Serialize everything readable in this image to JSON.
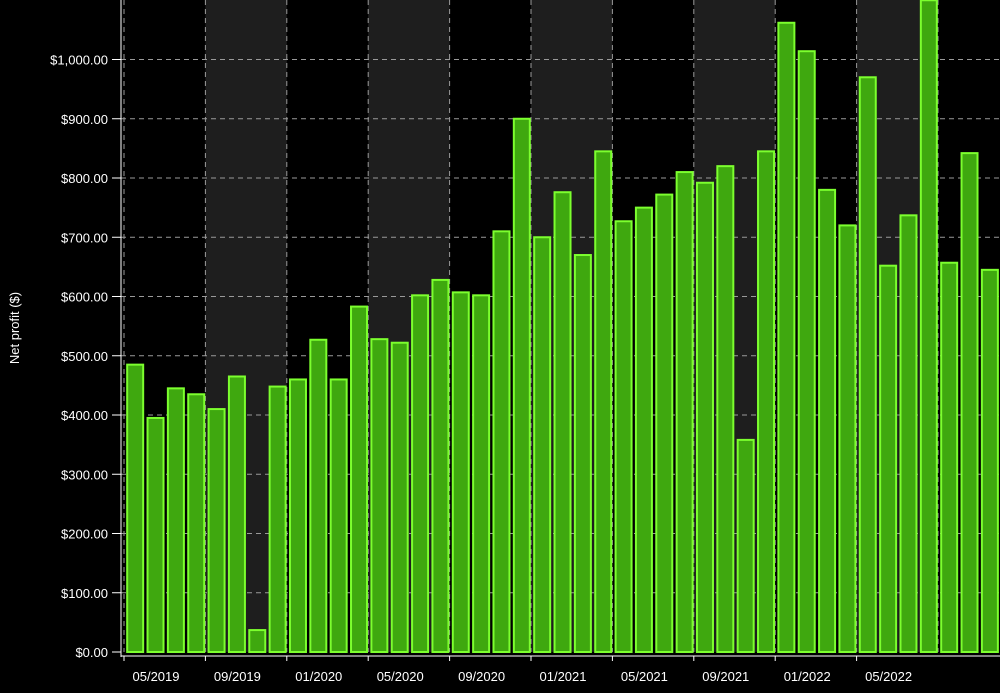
{
  "chart_data": {
    "type": "bar",
    "title": "",
    "xlabel": "",
    "ylabel": "Net profit ($)",
    "ylim": [
      0,
      1100
    ],
    "y_ticks": [
      0,
      100,
      200,
      300,
      400,
      500,
      600,
      700,
      800,
      900,
      1000
    ],
    "y_tick_labels": [
      "$0.00",
      "$100.00",
      "$200.00",
      "$300.00",
      "$400.00",
      "$500.00",
      "$600.00",
      "$700.00",
      "$800.00",
      "$900.00",
      "$1,000.00"
    ],
    "x_tick_labels": [
      "05/2019",
      "09/2019",
      "01/2020",
      "05/2020",
      "09/2020",
      "01/2021",
      "05/2021",
      "09/2021",
      "01/2022",
      "05/2022"
    ],
    "grid": true,
    "legend": "none",
    "colors": {
      "background": "#000000",
      "shaded_band": "#1e1e1e",
      "bar_fill": "#3fa80f",
      "bar_stroke": "#7cff2e",
      "grid": "#9a9a9a",
      "text": "#ffffff"
    },
    "categories": [
      "05/2019",
      "06/2019",
      "07/2019",
      "08/2019",
      "09/2019",
      "10/2019",
      "11/2019",
      "12/2019",
      "01/2020",
      "02/2020",
      "03/2020",
      "04/2020",
      "05/2020",
      "06/2020",
      "07/2020",
      "08/2020",
      "09/2020",
      "10/2020",
      "11/2020",
      "12/2020",
      "01/2021",
      "02/2021",
      "03/2021",
      "04/2021",
      "05/2021",
      "06/2021",
      "07/2021",
      "08/2021",
      "09/2021",
      "10/2021",
      "11/2021",
      "12/2021",
      "01/2022",
      "02/2022",
      "03/2022",
      "04/2022",
      "05/2022",
      "06/2022",
      "07/2022",
      "08/2022",
      "09/2022",
      "10/2022",
      "11/2022"
    ],
    "values": [
      485,
      395,
      445,
      435,
      410,
      465,
      37,
      448,
      460,
      527,
      460,
      583,
      528,
      522,
      602,
      628,
      607,
      602,
      710,
      900,
      700,
      776,
      670,
      845,
      727,
      750,
      772,
      810,
      792,
      820,
      358,
      845,
      1062,
      1014,
      780,
      720,
      970,
      652,
      737,
      1100,
      657,
      842,
      645
    ]
  }
}
